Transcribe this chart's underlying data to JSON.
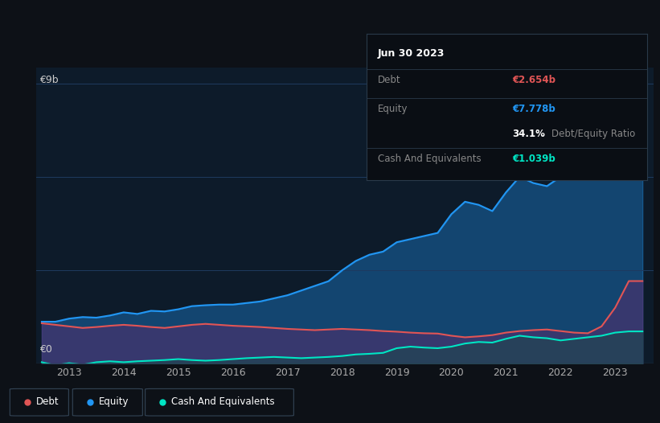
{
  "bg_color": "#0d1117",
  "plot_bg_color": "#0d1b2a",
  "grid_color": "#1e3a5f",
  "debt_color": "#e05555",
  "equity_color": "#2196f3",
  "cash_color": "#00e5c4",
  "tooltip_bg": "#0a0e14",
  "tooltip_border": "#2a3a4a",
  "y_label": "€9b",
  "y_zero_label": "€0",
  "x_ticks": [
    "2013",
    "2014",
    "2015",
    "2016",
    "2017",
    "2018",
    "2019",
    "2020",
    "2021",
    "2022",
    "2023"
  ],
  "tooltip_date": "Jun 30 2023",
  "tooltip_debt_label": "Debt",
  "tooltip_debt_value": "€2.654b",
  "tooltip_equity_label": "Equity",
  "tooltip_equity_value": "€7.778b",
  "tooltip_ratio_value": "34.1%",
  "tooltip_ratio_label": "Debt/Equity Ratio",
  "tooltip_cash_label": "Cash And Equivalents",
  "tooltip_cash_value": "€1.039b",
  "legend_debt": "Debt",
  "legend_equity": "Equity",
  "legend_cash": "Cash And Equivalents",
  "years": [
    2012.5,
    2012.75,
    2013.0,
    2013.25,
    2013.5,
    2013.75,
    2014.0,
    2014.25,
    2014.5,
    2014.75,
    2015.0,
    2015.25,
    2015.5,
    2015.75,
    2016.0,
    2016.25,
    2016.5,
    2016.75,
    2017.0,
    2017.25,
    2017.5,
    2017.75,
    2018.0,
    2018.25,
    2018.5,
    2018.75,
    2019.0,
    2019.25,
    2019.5,
    2019.75,
    2020.0,
    2020.25,
    2020.5,
    2020.75,
    2021.0,
    2021.25,
    2021.5,
    2021.75,
    2022.0,
    2022.25,
    2022.5,
    2022.75,
    2023.0,
    2023.25,
    2023.5
  ],
  "equity": [
    1.35,
    1.35,
    1.45,
    1.5,
    1.48,
    1.55,
    1.65,
    1.6,
    1.7,
    1.68,
    1.75,
    1.85,
    1.88,
    1.9,
    1.9,
    1.95,
    2.0,
    2.1,
    2.2,
    2.35,
    2.5,
    2.65,
    3.0,
    3.3,
    3.5,
    3.6,
    3.9,
    4.0,
    4.1,
    4.2,
    4.8,
    5.2,
    5.1,
    4.9,
    5.5,
    6.0,
    5.8,
    5.7,
    6.0,
    6.5,
    6.8,
    7.2,
    8.5,
    9.1,
    7.778
  ],
  "debt": [
    1.3,
    1.25,
    1.2,
    1.15,
    1.18,
    1.22,
    1.25,
    1.22,
    1.18,
    1.15,
    1.2,
    1.25,
    1.28,
    1.25,
    1.22,
    1.2,
    1.18,
    1.15,
    1.12,
    1.1,
    1.08,
    1.1,
    1.12,
    1.1,
    1.08,
    1.05,
    1.03,
    1.0,
    0.98,
    0.97,
    0.9,
    0.85,
    0.88,
    0.92,
    1.0,
    1.05,
    1.08,
    1.1,
    1.05,
    1.0,
    0.98,
    1.2,
    1.8,
    2.654,
    2.654
  ],
  "cash": [
    0.05,
    -0.05,
    0.02,
    -0.03,
    0.05,
    0.08,
    0.05,
    0.08,
    0.1,
    0.12,
    0.15,
    0.12,
    0.1,
    0.12,
    0.15,
    0.18,
    0.2,
    0.22,
    0.2,
    0.18,
    0.2,
    0.22,
    0.25,
    0.3,
    0.32,
    0.35,
    0.5,
    0.55,
    0.52,
    0.5,
    0.55,
    0.65,
    0.7,
    0.68,
    0.8,
    0.9,
    0.85,
    0.82,
    0.75,
    0.8,
    0.85,
    0.9,
    1.0,
    1.039,
    1.039
  ],
  "ylim": [
    0,
    9.5
  ],
  "xlim_min": 2012.4,
  "xlim_max": 2023.7
}
